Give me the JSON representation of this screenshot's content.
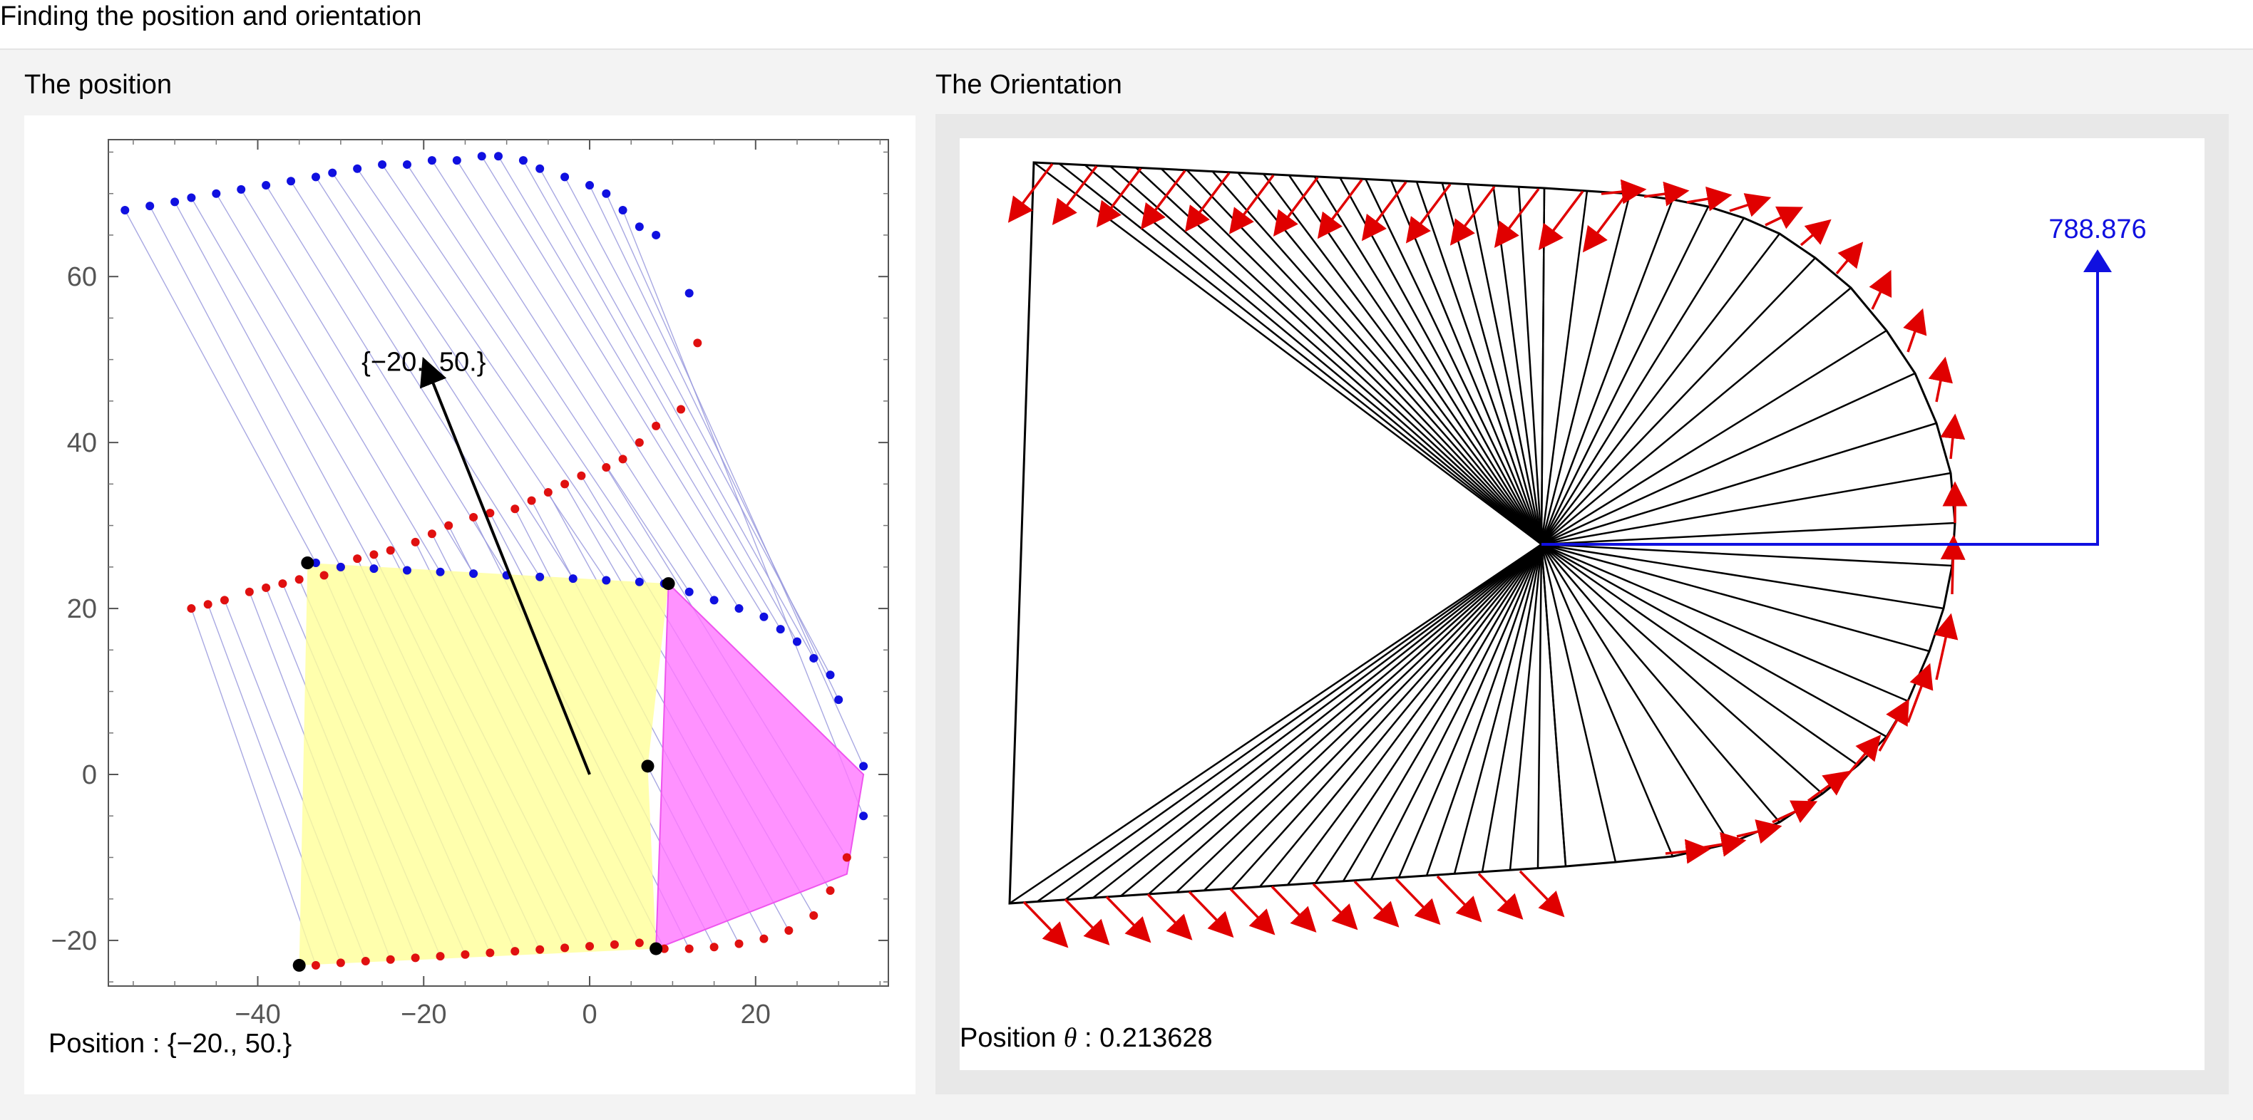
{
  "window": {
    "title": "Finding the position and orientation"
  },
  "position_panel": {
    "title": "The position",
    "caption_label": "Position : ",
    "caption_value": "{−20., 50.}",
    "arrow_label": "{−20., 50.}"
  },
  "orientation_panel": {
    "title": "The Orientation",
    "caption_label": "Position ",
    "caption_theta": "θ",
    "caption_sep": " : ",
    "caption_value": "0.213628",
    "force_label": "788.876"
  },
  "colors": {
    "blue_points": "#1010e0",
    "red_points": "#e01010",
    "yellow_fill": "#ffff99",
    "magenta_fill": "#ff77ff",
    "guide_lines": "#9999dd",
    "force_arrow": "#1010e0",
    "normal_arrows": "#e00000"
  },
  "chart_data": [
    {
      "type": "scatter",
      "title": "The position",
      "xlim": [
        -58,
        36
      ],
      "ylim": [
        -25.5,
        76.5
      ],
      "x_ticks": [
        -40,
        -20,
        0,
        20
      ],
      "y_ticks": [
        -20,
        0,
        20,
        40,
        60
      ],
      "x_tick_labels": [
        "−40",
        "−20",
        "0",
        "20"
      ],
      "y_tick_labels": [
        "−20",
        "0",
        "20",
        "40",
        "60"
      ],
      "position_vector": {
        "from": [
          0,
          0
        ],
        "to": [
          -20,
          50
        ],
        "label": "{−20., 50.}"
      },
      "series": [
        {
          "color": "blue",
          "points": [
            [
              -56,
              68
            ],
            [
              -53,
              68.5
            ],
            [
              -50,
              69
            ],
            [
              -48,
              69.5
            ],
            [
              -45,
              70
            ],
            [
              -42,
              70.5
            ],
            [
              -39,
              71
            ],
            [
              -36,
              71.5
            ],
            [
              -33,
              72
            ],
            [
              -31,
              72.5
            ],
            [
              -28,
              73
            ],
            [
              -25,
              73.5
            ],
            [
              -22,
              73.5
            ],
            [
              -19,
              74
            ],
            [
              -16,
              74
            ],
            [
              -13,
              74.5
            ],
            [
              -11,
              74.5
            ],
            [
              -8,
              74
            ],
            [
              -6,
              73
            ],
            [
              -3,
              72
            ],
            [
              0,
              71
            ],
            [
              2,
              70
            ],
            [
              4,
              68
            ],
            [
              6,
              66
            ],
            [
              8,
              65
            ],
            [
              12,
              58
            ]
          ]
        },
        {
          "color": "red",
          "points": [
            [
              -48,
              20
            ],
            [
              -46,
              20.5
            ],
            [
              -44,
              21
            ],
            [
              -41,
              22
            ],
            [
              -39,
              22.5
            ],
            [
              -37,
              23
            ],
            [
              -35,
              23.5
            ],
            [
              -32,
              24
            ],
            [
              -30,
              25
            ],
            [
              -28,
              26
            ],
            [
              -26,
              26.5
            ],
            [
              -24,
              27
            ],
            [
              -21,
              28
            ],
            [
              -19,
              29
            ],
            [
              -17,
              30
            ],
            [
              -14,
              31
            ],
            [
              -12,
              31.5
            ],
            [
              -9,
              32
            ],
            [
              -7,
              33
            ],
            [
              -5,
              34
            ],
            [
              -3,
              35
            ],
            [
              -1,
              36
            ],
            [
              2,
              37
            ],
            [
              4,
              38
            ],
            [
              6,
              40
            ],
            [
              8,
              42
            ],
            [
              11,
              44
            ],
            [
              13,
              52
            ]
          ]
        },
        {
          "color": "blue",
          "points": [
            [
              -33,
              25.5
            ],
            [
              -30,
              25
            ],
            [
              -26,
              24.8
            ],
            [
              -22,
              24.6
            ],
            [
              -18,
              24.4
            ],
            [
              -14,
              24.2
            ],
            [
              -10,
              24
            ],
            [
              -6,
              23.8
            ],
            [
              -2,
              23.6
            ],
            [
              2,
              23.4
            ],
            [
              6,
              23.2
            ],
            [
              9,
              23
            ],
            [
              12,
              22
            ],
            [
              15,
              21
            ],
            [
              18,
              20
            ],
            [
              21,
              19
            ],
            [
              23,
              17.5
            ],
            [
              25,
              16
            ],
            [
              27,
              14
            ],
            [
              29,
              12
            ],
            [
              30,
              9
            ],
            [
              33,
              1
            ],
            [
              33,
              -5
            ]
          ]
        },
        {
          "color": "red",
          "points": [
            [
              -33,
              -23
            ],
            [
              -30,
              -22.7
            ],
            [
              -27,
              -22.5
            ],
            [
              -24,
              -22.3
            ],
            [
              -21,
              -22.1
            ],
            [
              -18,
              -21.9
            ],
            [
              -15,
              -21.7
            ],
            [
              -12,
              -21.5
            ],
            [
              -9,
              -21.3
            ],
            [
              -6,
              -21.1
            ],
            [
              -3,
              -20.9
            ],
            [
              0,
              -20.7
            ],
            [
              3,
              -20.5
            ],
            [
              6,
              -20.3
            ],
            [
              9,
              -21
            ],
            [
              12,
              -21
            ],
            [
              15,
              -20.8
            ],
            [
              18,
              -20.4
            ],
            [
              21,
              -19.8
            ],
            [
              24,
              -18.8
            ],
            [
              27,
              -17
            ],
            [
              29,
              -14
            ],
            [
              31,
              -10
            ]
          ]
        }
      ],
      "key_points": [
        [
          -34,
          25.5
        ],
        [
          9.5,
          23
        ],
        [
          7,
          1
        ],
        [
          8,
          -21
        ],
        [
          -35,
          -23
        ]
      ],
      "regions": [
        {
          "fill": "yellow",
          "vertices": [
            [
              -34,
              25.5
            ],
            [
              9.5,
              23
            ],
            [
              7,
              1
            ],
            [
              8,
              -21
            ],
            [
              -35,
              -23
            ]
          ]
        },
        {
          "fill": "magenta",
          "vertices": [
            [
              9.5,
              23
            ],
            [
              33,
              0
            ],
            [
              31,
              -12
            ],
            [
              8,
              -21
            ]
          ]
        }
      ]
    },
    {
      "type": "diagram",
      "title": "The Orientation",
      "theta": 0.213628,
      "force_magnitude": 788.876
    }
  ]
}
